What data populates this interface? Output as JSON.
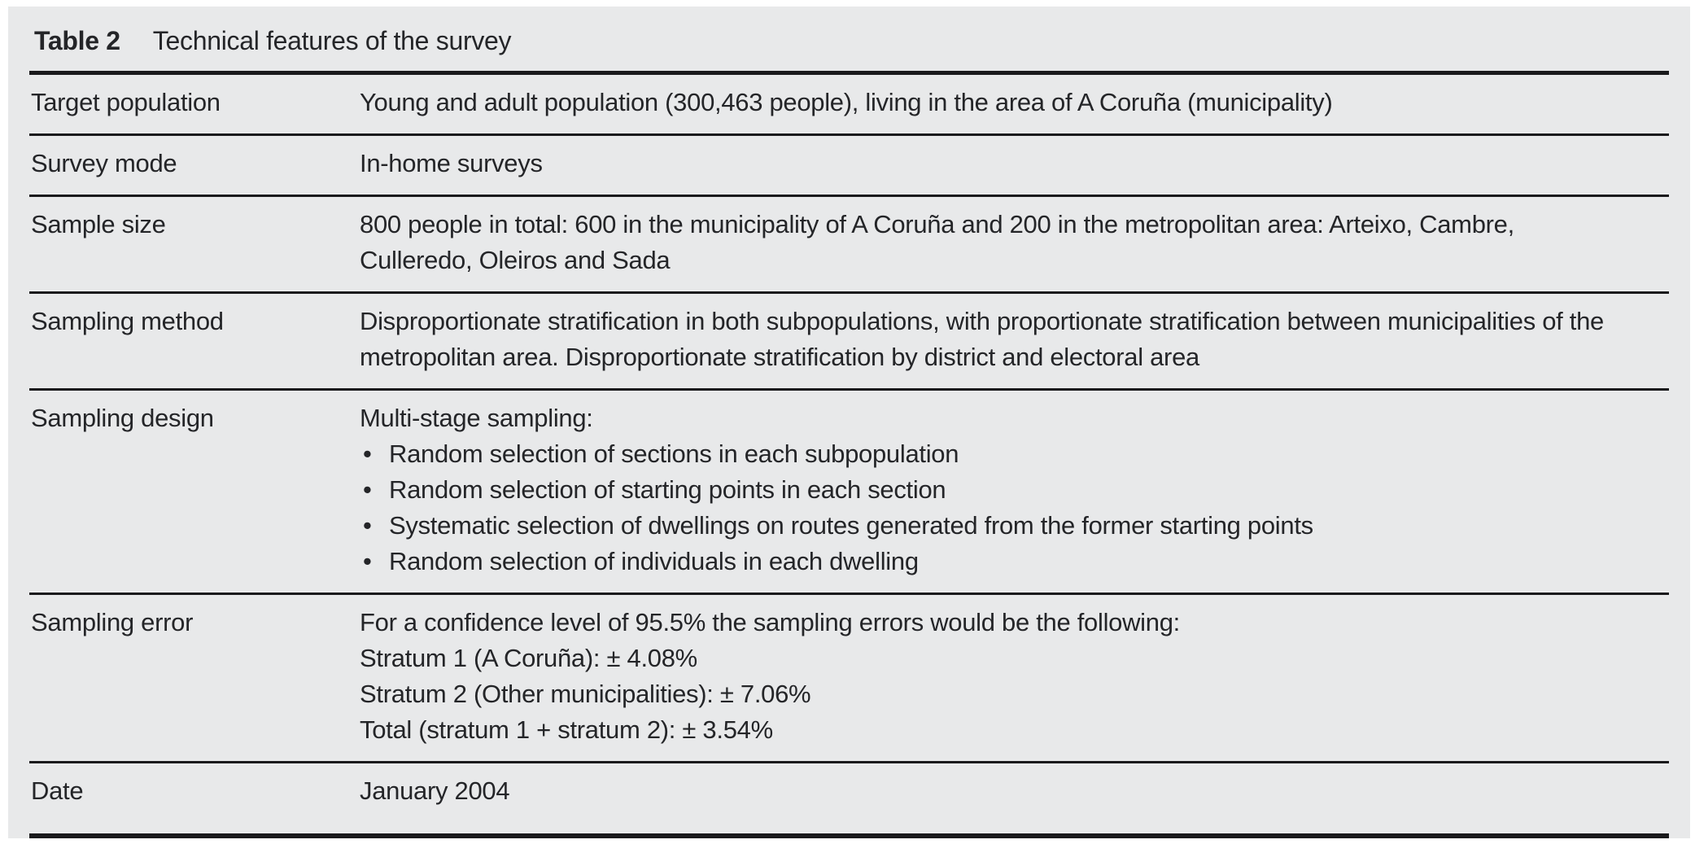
{
  "colors": {
    "panel_background": "#e8e9ea",
    "rule": "#1a1a1c",
    "text": "#242528"
  },
  "icons": {
    "bullet": "•"
  },
  "table": {
    "label": "Table 2",
    "title": "Technical features of the survey",
    "rows": [
      {
        "label": "Target population",
        "text": "Young and adult population (300,463 people), living in the area of A Coruña (municipality)"
      },
      {
        "label": "Survey mode",
        "text": "In-home surveys"
      },
      {
        "label": "Sample size",
        "text": "800 people in total: 600 in the municipality of A Coruña and 200 in the metropolitan area: Arteixo, Cambre, Culleredo, Oleiros and Sada"
      },
      {
        "label": "Sampling method",
        "text": "Disproportionate stratification in both subpopulations, with proportionate stratification between municipalities of the metropolitan area. Disproportionate stratification by district and electoral area"
      },
      {
        "label": "Sampling design",
        "intro": "Multi-stage sampling:",
        "bullets": [
          "Random selection of sections in each subpopulation",
          "Random selection of starting points in each section",
          "Systematic selection of dwellings on routes generated from the former starting points",
          "Random selection of individuals in each dwelling"
        ]
      },
      {
        "label": "Sampling error",
        "lines": [
          "For a confidence level of 95.5% the sampling errors would be the following:",
          "Stratum 1 (A Coruña): ± 4.08%",
          "Stratum 2 (Other municipalities): ± 7.06%",
          "Total (stratum 1 + stratum 2): ± 3.54%"
        ]
      },
      {
        "label": "Date",
        "text": "January 2004"
      }
    ]
  }
}
